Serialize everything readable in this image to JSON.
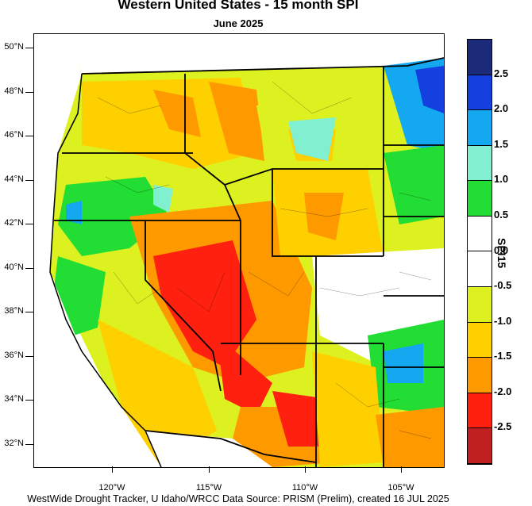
{
  "title": "Western United States - 15 month SPI",
  "subtitle": "June 2025",
  "footer": "WestWide Drought Tracker, U Idaho/WRCC Data Source: PRISM (Prelim), created 16 JUL 2025",
  "lat_labels": [
    "50°N",
    "48°N",
    "46°N",
    "44°N",
    "42°N",
    "40°N",
    "38°N",
    "36°N",
    "34°N",
    "32°N"
  ],
  "lon_labels": [
    "120°W",
    "115°W",
    "110°W",
    "105°W"
  ],
  "legend": {
    "title": "SPI15",
    "labels": [
      "2.5",
      "2.0",
      "1.5",
      "1.0",
      "0.5",
      "0.0",
      "-0.5",
      "-1.0",
      "-1.5",
      "-2.0",
      "-2.5"
    ],
    "colors": [
      "#1c2a7a",
      "#1440e0",
      "#14a8f0",
      "#80f0d0",
      "#22dd33",
      "#ffffff",
      "#ffffff",
      "#ddf020",
      "#ffd000",
      "#ff9900",
      "#ff2010",
      "#c02020"
    ]
  },
  "colors": {
    "extreme_dry": "#ff2010",
    "severe_dry": "#ff9900",
    "moderate_dry": "#ffd000",
    "mild_dry": "#ddf020",
    "normal": "#ffffff",
    "mild_wet": "#22dd33",
    "moderate_wet": "#80f0d0",
    "very_wet": "#14a8f0",
    "extreme_wet": "#1440e0"
  }
}
